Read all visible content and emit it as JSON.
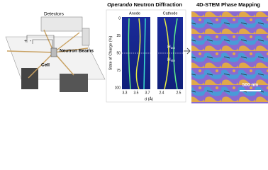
{
  "left": {
    "detectors": "Detectors",
    "beams": "Neutron Beams",
    "cell": "Cell",
    "plus": "+",
    "minus": "-"
  },
  "middle": {
    "title_italic": "Operando",
    "title_rest": "Neutron Diffraction",
    "anode": "Anode",
    "cathode": "Cathode",
    "y_label": "State of Charge (%)",
    "yticks": [
      "0",
      "25",
      "50",
      "75",
      "100"
    ],
    "anode_xticks": [
      "3.3",
      "3.5",
      "3.7"
    ],
    "cathode_xticks": [
      "2.4",
      "2.5"
    ],
    "x_label": "d (Å)",
    "h1": "H",
    "h1_sub": "act",
    "h2": "H",
    "h2_sub": "sto"
  },
  "right": {
    "title": "4D-STEM Phase Mapping",
    "scale": "500 nm"
  }
}
